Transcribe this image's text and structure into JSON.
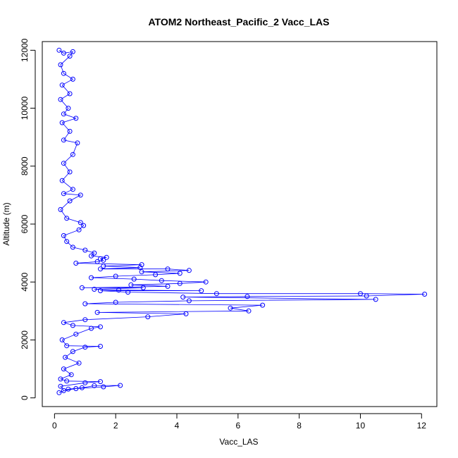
{
  "chart_data": {
    "type": "scatter",
    "title": "ATOM2 Northeast_Pacific_2 Vacc_LAS",
    "xlabel": "Vacc_LAS",
    "ylabel": "Altitude (m)",
    "xlim": [
      -0.4,
      12.5
    ],
    "ylim": [
      -300,
      12300
    ],
    "x_ticks": [
      0,
      2,
      4,
      6,
      8,
      10,
      12
    ],
    "y_ticks": [
      0,
      2000,
      4000,
      6000,
      8000,
      10000,
      12000
    ],
    "x_tick_labels": [
      "0",
      "2",
      "4",
      "6",
      "8",
      "10",
      "12"
    ],
    "y_tick_labels": [
      "0",
      "2000",
      "4000",
      "6000",
      "8000",
      "10000",
      "12000"
    ],
    "grid": false,
    "color": "#0000ff",
    "marker": "open-circle",
    "connected": true,
    "series": [
      {
        "points": [
          [
            0.15,
            180
          ],
          [
            0.45,
            300
          ],
          [
            0.9,
            350
          ],
          [
            1.3,
            420
          ],
          [
            2.15,
            430
          ],
          [
            1.6,
            380
          ],
          [
            0.7,
            320
          ],
          [
            0.3,
            250
          ],
          [
            0.2,
            400
          ],
          [
            1.0,
            520
          ],
          [
            1.5,
            560
          ],
          [
            0.4,
            580
          ],
          [
            0.2,
            650
          ],
          [
            0.55,
            800
          ],
          [
            0.3,
            1000
          ],
          [
            0.8,
            1200
          ],
          [
            0.35,
            1400
          ],
          [
            0.6,
            1600
          ],
          [
            1.0,
            1750
          ],
          [
            1.5,
            1780
          ],
          [
            0.4,
            1800
          ],
          [
            0.25,
            2000
          ],
          [
            0.7,
            2200
          ],
          [
            1.2,
            2400
          ],
          [
            1.5,
            2450
          ],
          [
            0.6,
            2500
          ],
          [
            0.3,
            2600
          ],
          [
            1.0,
            2700
          ],
          [
            3.05,
            2800
          ],
          [
            4.3,
            2900
          ],
          [
            1.4,
            2950
          ],
          [
            6.35,
            3000
          ],
          [
            5.75,
            3100
          ],
          [
            6.8,
            3200
          ],
          [
            1.0,
            3250
          ],
          [
            2.0,
            3300
          ],
          [
            4.4,
            3350
          ],
          [
            10.5,
            3400
          ],
          [
            4.2,
            3480
          ],
          [
            6.3,
            3500
          ],
          [
            10.2,
            3520
          ],
          [
            12.1,
            3580
          ],
          [
            10.0,
            3600
          ],
          [
            5.3,
            3600
          ],
          [
            2.4,
            3650
          ],
          [
            1.5,
            3700
          ],
          [
            4.8,
            3700
          ],
          [
            2.1,
            3720
          ],
          [
            1.3,
            3750
          ],
          [
            2.9,
            3800
          ],
          [
            0.9,
            3800
          ],
          [
            3.7,
            3850
          ],
          [
            2.5,
            3900
          ],
          [
            4.1,
            3950
          ],
          [
            4.95,
            4000
          ],
          [
            3.5,
            4050
          ],
          [
            2.6,
            4100
          ],
          [
            1.2,
            4150
          ],
          [
            2.0,
            4200
          ],
          [
            3.3,
            4250
          ],
          [
            4.1,
            4300
          ],
          [
            2.85,
            4350
          ],
          [
            4.4,
            4400
          ],
          [
            3.7,
            4450
          ],
          [
            1.5,
            4450
          ],
          [
            2.8,
            4500
          ],
          [
            1.6,
            4550
          ],
          [
            2.85,
            4600
          ],
          [
            0.7,
            4650
          ],
          [
            1.4,
            4700
          ],
          [
            1.6,
            4750
          ],
          [
            1.5,
            4800
          ],
          [
            1.7,
            4850
          ],
          [
            1.2,
            4900
          ],
          [
            1.3,
            5000
          ],
          [
            1.0,
            5100
          ],
          [
            0.6,
            5200
          ],
          [
            0.4,
            5400
          ],
          [
            0.3,
            5600
          ],
          [
            0.8,
            5800
          ],
          [
            0.95,
            5950
          ],
          [
            0.85,
            6050
          ],
          [
            0.4,
            6200
          ],
          [
            0.2,
            6500
          ],
          [
            0.5,
            6800
          ],
          [
            0.85,
            7000
          ],
          [
            0.3,
            7050
          ],
          [
            0.6,
            7200
          ],
          [
            0.25,
            7500
          ],
          [
            0.5,
            7800
          ],
          [
            0.3,
            8100
          ],
          [
            0.6,
            8400
          ],
          [
            0.75,
            8800
          ],
          [
            0.3,
            8900
          ],
          [
            0.5,
            9200
          ],
          [
            0.25,
            9500
          ],
          [
            0.7,
            9650
          ],
          [
            0.3,
            9800
          ],
          [
            0.45,
            10000
          ],
          [
            0.2,
            10300
          ],
          [
            0.5,
            10500
          ],
          [
            0.25,
            10800
          ],
          [
            0.6,
            11000
          ],
          [
            0.3,
            11200
          ],
          [
            0.2,
            11500
          ],
          [
            0.5,
            11800
          ],
          [
            0.6,
            11950
          ],
          [
            0.3,
            11900
          ],
          [
            0.15,
            12000
          ]
        ]
      }
    ]
  }
}
